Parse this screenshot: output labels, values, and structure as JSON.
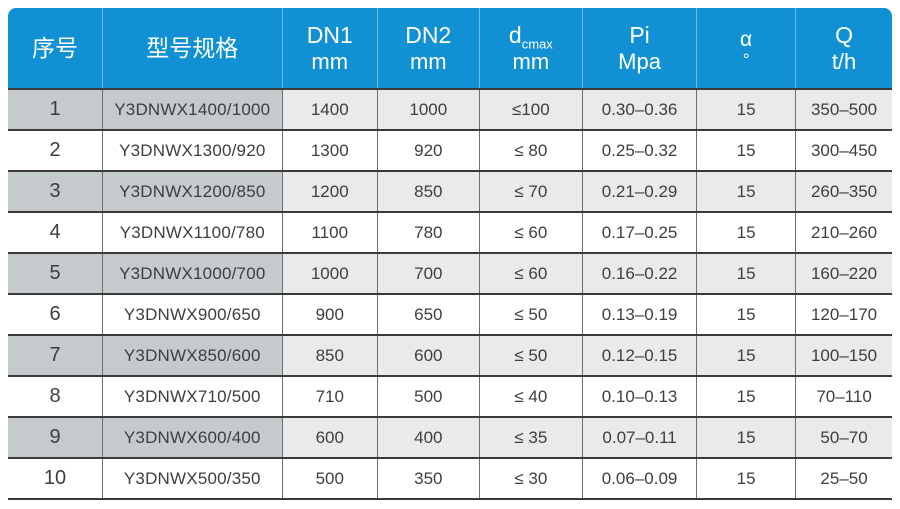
{
  "table": {
    "columns": [
      {
        "id": "index",
        "line1": "序号",
        "sub": "",
        "line2": ""
      },
      {
        "id": "model",
        "line1": "型号规格",
        "sub": "",
        "line2": ""
      },
      {
        "id": "dn1",
        "line1": "DN1",
        "sub": "",
        "line2": "mm"
      },
      {
        "id": "dn2",
        "line1": "DN2",
        "sub": "",
        "line2": "mm"
      },
      {
        "id": "dcmax",
        "line1": "d",
        "sub": "cmax",
        "line2": "mm"
      },
      {
        "id": "pi",
        "line1": "Pi",
        "sub": "",
        "line2": "Mpa"
      },
      {
        "id": "alpha",
        "line1": "α",
        "sub": "",
        "line2": "°"
      },
      {
        "id": "q",
        "line1": "Q",
        "sub": "",
        "line2": "t/h"
      }
    ],
    "rows": [
      [
        "1",
        "Y3DNWX1400/1000",
        "1400",
        "1000",
        "≤100",
        "0.30–0.36",
        "15",
        "350–500"
      ],
      [
        "2",
        "Y3DNWX1300/920",
        "1300",
        "920",
        "≤ 80",
        "0.25–0.32",
        "15",
        "300–450"
      ],
      [
        "3",
        "Y3DNWX1200/850",
        "1200",
        "850",
        "≤ 70",
        "0.21–0.29",
        "15",
        "260–350"
      ],
      [
        "4",
        "Y3DNWX1100/780",
        "1100",
        "780",
        "≤ 60",
        "0.17–0.25",
        "15",
        "210–260"
      ],
      [
        "5",
        "Y3DNWX1000/700",
        "1000",
        "700",
        "≤ 60",
        "0.16–0.22",
        "15",
        "160–220"
      ],
      [
        "6",
        "Y3DNWX900/650",
        "900",
        "650",
        "≤ 50",
        "0.13–0.19",
        "15",
        "120–170"
      ],
      [
        "7",
        "Y3DNWX850/600",
        "850",
        "600",
        "≤ 50",
        "0.12–0.15",
        "15",
        "100–150"
      ],
      [
        "8",
        "Y3DNWX710/500",
        "710",
        "500",
        "≤ 40",
        "0.10–0.13",
        "15",
        "70–110"
      ],
      [
        "9",
        "Y3DNWX600/400",
        "600",
        "400",
        "≤ 35",
        "0.07–0.11",
        "15",
        "50–70"
      ],
      [
        "10",
        "Y3DNWX500/350",
        "500",
        "350",
        "≤ 30",
        "0.06–0.09",
        "15",
        "25–50"
      ]
    ]
  },
  "colors": {
    "header_bg": "#1191d3",
    "header_text": "#ffffff",
    "row_shaded_left": "#c5cacd",
    "row_shaded_right": "#e9eaea",
    "row_plain": "#ffffff",
    "border_dark": "#3b3b3b",
    "border_mid": "#6e6e6e",
    "body_text": "#3e3e3e"
  },
  "chart_data": {
    "type": "table",
    "title": "Y3DNWX model specification table",
    "columns": [
      "序号",
      "型号规格",
      "DN1 mm",
      "DN2 mm",
      "dcmax mm",
      "Pi Mpa",
      "α °",
      "Q t/h"
    ]
  }
}
